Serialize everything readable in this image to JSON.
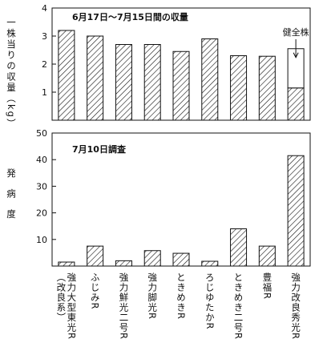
{
  "chart_data": [
    {
      "type": "bar",
      "title": "6月17日〜7月15日間の収量",
      "ylabel": "一株当りの収量（kg）",
      "ylim": [
        0,
        4
      ],
      "yticks": [
        "1",
        "2",
        "3",
        "4"
      ],
      "categories": [
        "強力大型東光R（改良系）",
        "ふじみR",
        "強力鮮光二号R",
        "強力脚光R",
        "ときめきR",
        "ろじゆたかR",
        "ときめき二号R",
        "豊福R",
        "強力改良秀光R"
      ],
      "values": [
        3.2,
        3.0,
        2.7,
        2.7,
        2.45,
        2.9,
        2.3,
        2.28,
        1.15
      ],
      "annotation": {
        "text": "健全株",
        "category_index": 8,
        "value": 2.55
      }
    },
    {
      "type": "bar",
      "title": "7月10日調査",
      "ylabel": "発病度",
      "ylim": [
        0,
        50
      ],
      "yticks": [
        "10",
        "20",
        "30",
        "40",
        "50"
      ],
      "categories": [
        "強力大型東光R（改良系）",
        "ふじみR",
        "強力鮮光二号R",
        "強力脚光R",
        "ときめきR",
        "ろじゆたかR",
        "ときめき二号R",
        "豊福R",
        "強力改良秀光R"
      ],
      "values": [
        1.5,
        7.5,
        2.0,
        5.8,
        4.8,
        1.8,
        14.0,
        7.5,
        41.5
      ]
    }
  ],
  "x_labels": [
    {
      "lines": [
        "強力大型東光R",
        "（改良系）"
      ]
    },
    {
      "lines": [
        "ふじみR"
      ]
    },
    {
      "lines": [
        "強力鮮光二号R"
      ]
    },
    {
      "lines": [
        "強力脚光R"
      ]
    },
    {
      "lines": [
        "ときめきR"
      ]
    },
    {
      "lines": [
        "ろじゆたかR"
      ]
    },
    {
      "lines": [
        "ときめき二号R"
      ]
    },
    {
      "lines": [
        "豊福R"
      ]
    },
    {
      "lines": [
        "強力改良秀光R"
      ]
    }
  ]
}
